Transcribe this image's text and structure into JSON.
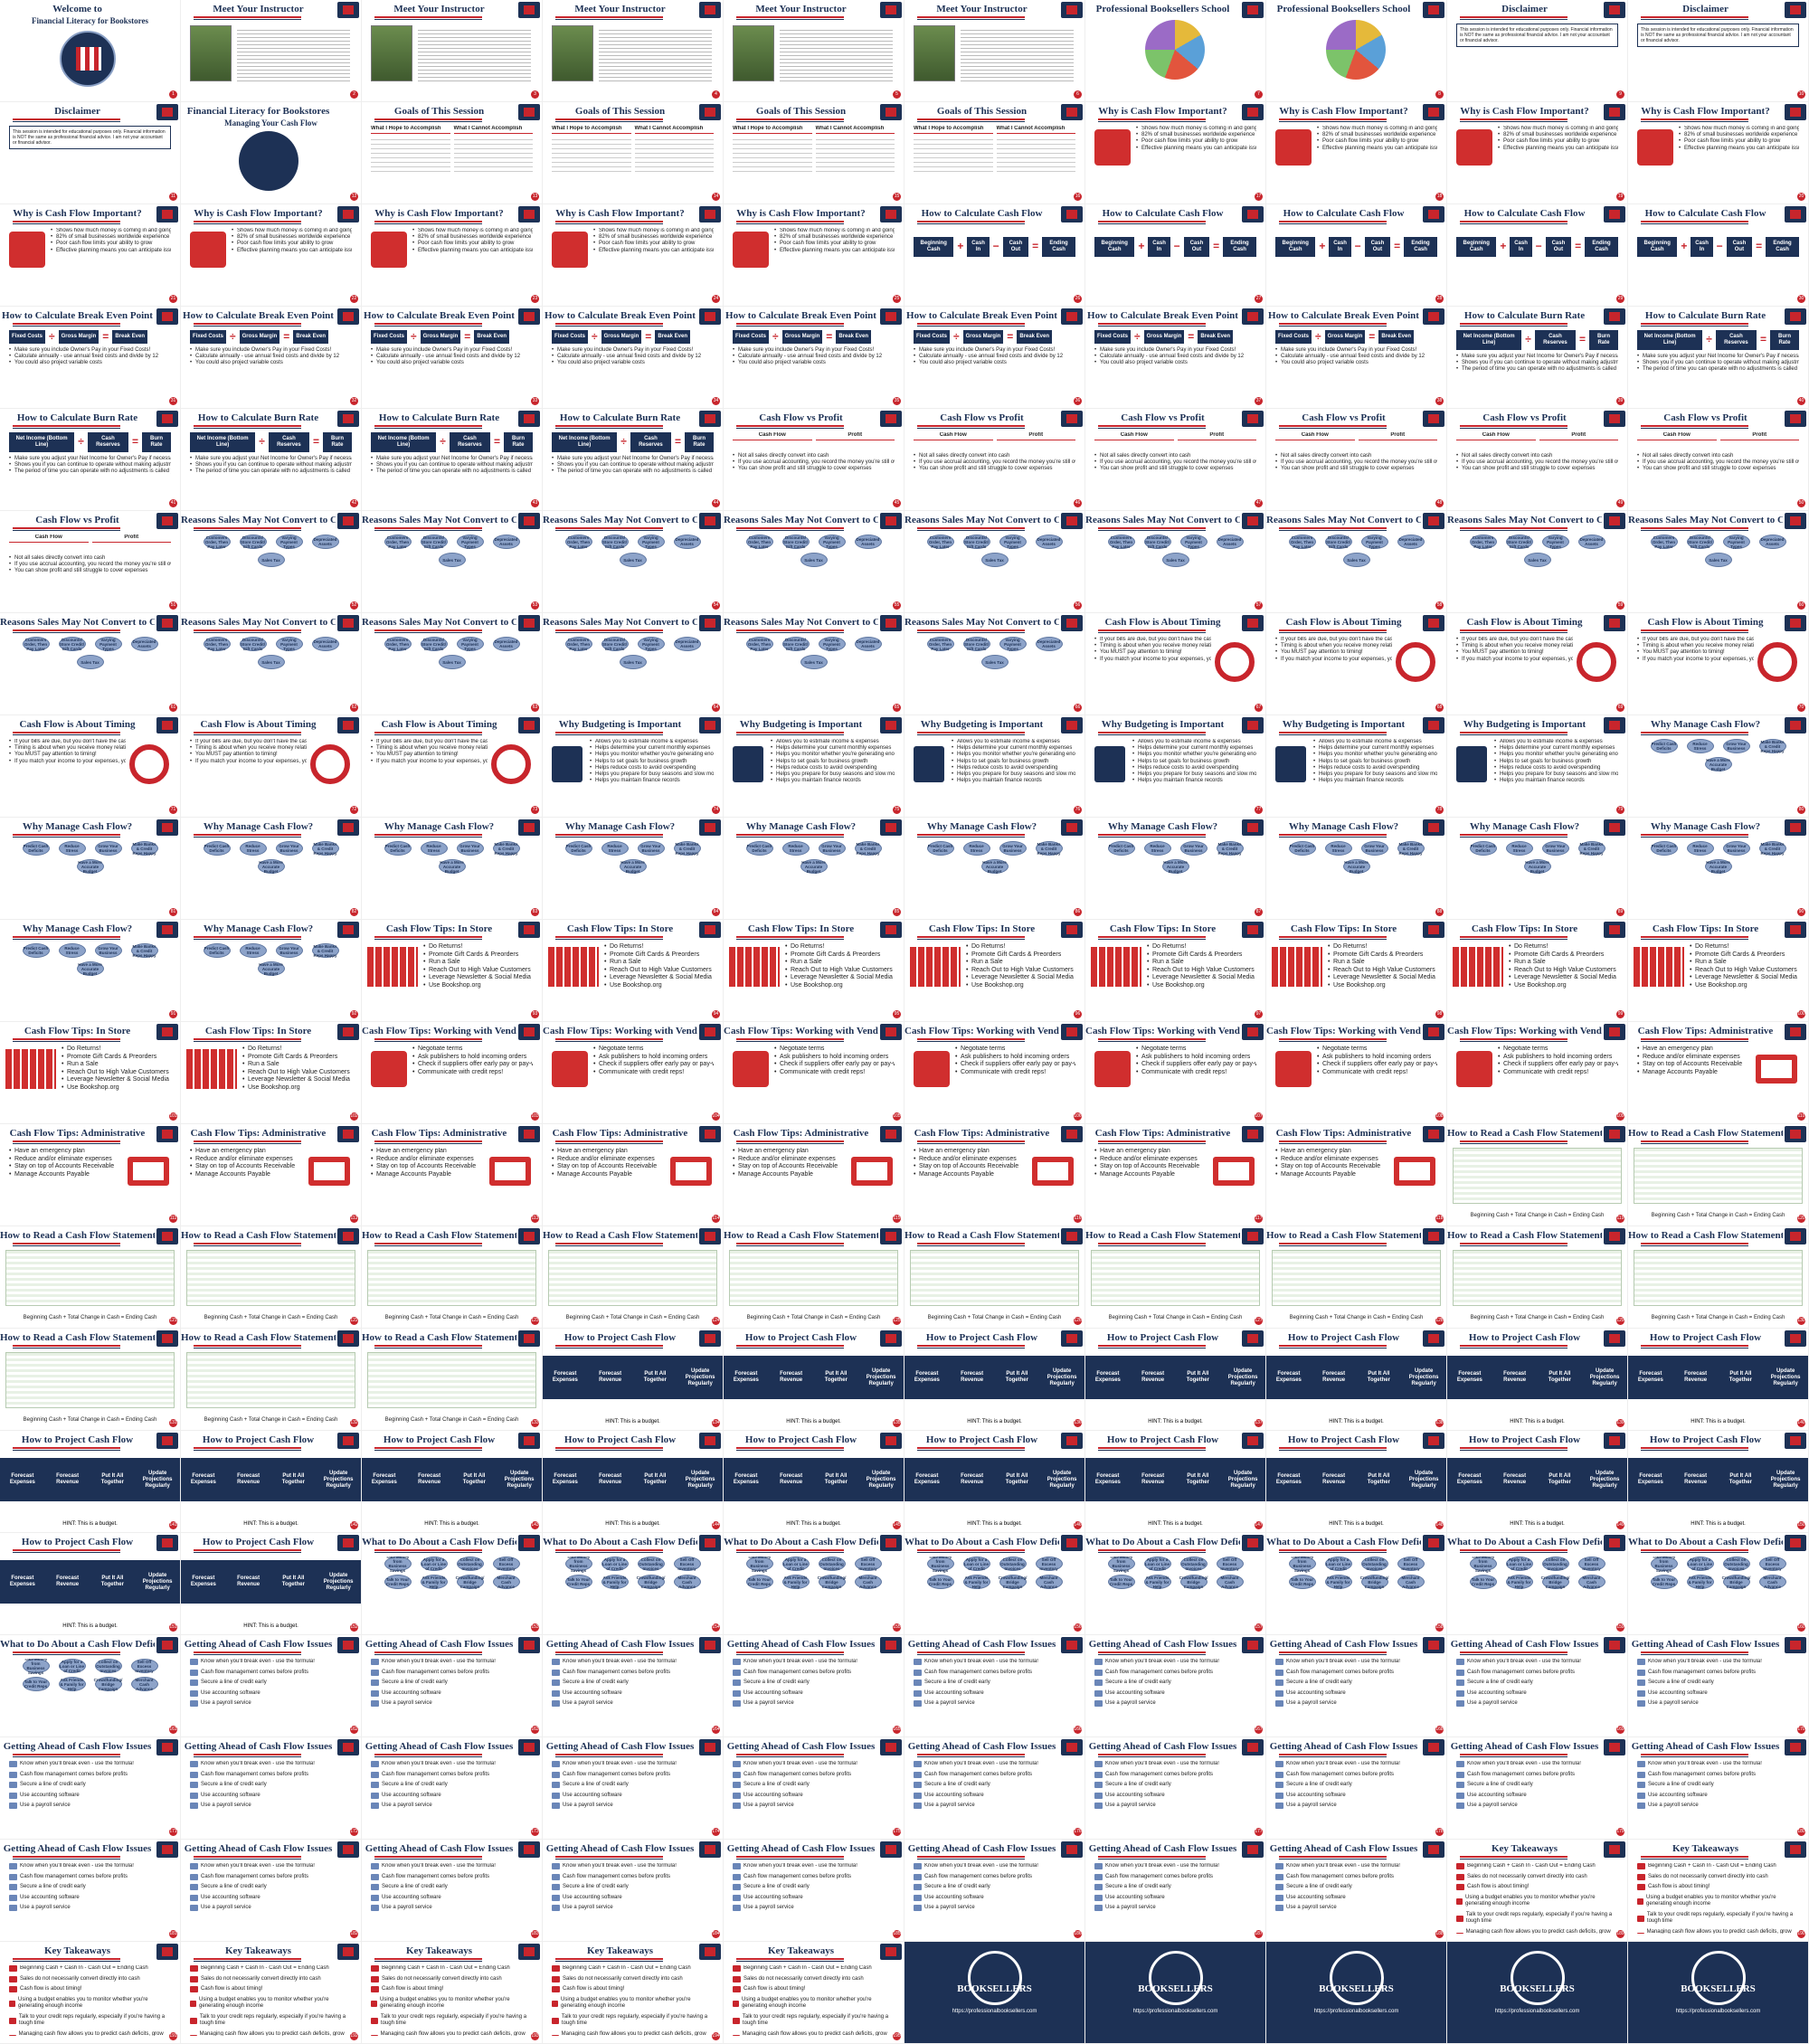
{
  "deck": {
    "brand": "Professional Booksellers School",
    "url": "https://professionalbooksellers.com"
  },
  "titles": {
    "welcome": "Welcome to",
    "welcome_sub": "Financial Literacy for Bookstores",
    "instructor": "Meet Your Instructor",
    "pbs": "Professional Booksellers School",
    "disclaimer": "Disclaimer",
    "fl_title": "Financial Literacy for Bookstores",
    "fl_sub": "Managing Your Cash Flow",
    "goals": "Goals of This Session",
    "why_cf": "Why is Cash Flow Important?",
    "calc_cf": "How to Calculate Cash Flow",
    "calc_be": "How to Calculate Break Even Point",
    "calc_burn": "How to Calculate Burn Rate",
    "cf_vs_profit": "Cash Flow vs Profit",
    "reasons": "Reasons Sales May Not Convert to Cash",
    "timing": "Cash Flow is About Timing",
    "budgeting": "Why Budgeting is Important",
    "why_manage": "Why Manage Cash Flow?",
    "tips_store": "Cash Flow Tips: In Store",
    "tips_vendors": "Cash Flow Tips: Working with Vendors",
    "tips_admin": "Cash Flow Tips: Administrative",
    "read_stmt": "How to Read a Cash Flow Statement",
    "project": "How to Project Cash Flow",
    "do_about": "What to Do About a Cash Flow Deficit",
    "ahead": "Getting Ahead of Cash Flow Issues",
    "takeaways": "Key Takeaways",
    "booksellers": "BOOKSELLERS"
  },
  "goals": {
    "left_head": "What I Hope to Accomplish",
    "right_head": "What I Cannot Accomplish"
  },
  "disclaimer_text": "This session is intended for educational purposes only. Financial information is NOT the same as professional financial advice. I am not your accountant or financial advisor.",
  "why_cf_bullets": [
    "Shows how much money is coming in and going out",
    "82% of small businesses worldwide experience cash flow problems",
    "Poor cash flow limits your ability to grow",
    "Effective planning means you can anticipate issues"
  ],
  "calc_cf_boxes": [
    "Beginning Cash",
    "Cash In",
    "Cash Out",
    "Ending Cash"
  ],
  "calc_be_boxes": [
    "Fixed Costs",
    "Gross Margin",
    "Break Even"
  ],
  "calc_burn_boxes": [
    "Net Income (Bottom Line)",
    "Cash Reserves",
    "Burn Rate"
  ],
  "calc_be_bullets": [
    "Make sure you include Owner's Pay in your Fixed Costs!",
    "Calculate annually - use annual fixed costs and divide by 12",
    "You could also project variable costs"
  ],
  "calc_burn_bullets": [
    "Make sure you adjust your Net Income for Owner's Pay if necessary",
    "Shows you if you can continue to operate without making adjustments",
    "The period of time you can operate with no adjustments is called your runway"
  ],
  "cf_vs_profit": {
    "left_head": "Cash Flow",
    "right_head": "Profit",
    "bullets": [
      "Not all sales directly convert into cash",
      "If you use accrual accounting, you record the money you're still owed as revenue",
      "You can show profit and still struggle to cover expenses"
    ]
  },
  "reasons_ovals": [
    "Customers Order, Then Pay Later",
    "Discounts/ Store Credit/ Gift Cards",
    "Varying Payment Types",
    "Depreciated Assets",
    "Sales Tax"
  ],
  "timing_bullets": [
    "If your bills are due, but you don't have the cash on hand to pay them, you have a cash flow issue",
    "Timing is about when you receive money relative to when you need to spend it",
    "You MUST pay attention to timing!",
    "If you match your income to your expenses, you'll save money and stress"
  ],
  "budgeting_bullets": [
    "Allows you to estimate income & expenses",
    "Helps determine your current monthly expenses",
    "Helps you monitor whether you're generating enough income",
    "Helps to set goals for business growth",
    "Helps reduce costs to avoid overspending",
    "Helps you prepare for busy seasons and slow months",
    "Helps you maintain finance records"
  ],
  "manage_ovals": [
    "Predict Cash Deficits",
    "Reduce Stress",
    "Grow Your Business",
    "Make Banks & Credit Reps Happy",
    "Have a More Accurate Budget"
  ],
  "store_bullets": [
    "Do Returns!",
    "Promote Gift Cards & Preorders",
    "Run a Sale",
    "Reach Out to High Value Customers",
    "Leverage Newsletter & Social Media",
    "Use Bookshop.org"
  ],
  "vendor_bullets": [
    "Negotiate terms",
    "Ask publishers to hold incoming orders",
    "Check if suppliers offer early pay or pay-with-credit card discounts",
    "Communicate with credit reps!"
  ],
  "admin_bullets": [
    "Have an emergency plan",
    "Reduce and/or eliminate expenses",
    "Stay on top of Accounts Receivable",
    "Manage Accounts Payable"
  ],
  "stmt_formula": "Beginning Cash + Total Change in Cash = Ending Cash",
  "project_boxes": [
    "Forecast Expenses",
    "Forecast Revenue",
    "Put It All Together",
    "Update Projections Regularly"
  ],
  "project_hint": "HINT: This is a budget.",
  "deficit_ovals": [
    "Take Money from Business Savings",
    "Apply for a Loan or Line of Credit",
    "Collect on Outstanding Invoices",
    "Sell Off Excess Inventory",
    "Talk to Your Credit Reps",
    "Ask Friends & Family for Help",
    "Crowdfunding/ Bridge Campaign",
    "Merchant Cash Advance"
  ],
  "ahead_items": [
    "Know when you'll break even - use the formula!",
    "Cash flow management comes before profits",
    "Secure a line of credit early",
    "Use accounting software",
    "Use a payroll service"
  ],
  "takeaways": [
    "Beginning Cash + Cash In - Cash Out = Ending Cash",
    "Sales do not necessarily convert directly into cash",
    "Cash flow is about timing!",
    "Using a budget enables you to monitor whether you're generating enough income",
    "Talk to your credit reps regularly, especially if you're having a tough time",
    "Managing cash flow allows you to predict cash deficits, grow your business"
  ],
  "slides": [
    "welcome",
    "instructor",
    "instructor",
    "instructor",
    "instructor",
    "instructor",
    "pbs",
    "pbs",
    "disclaimer",
    "disclaimer",
    "disclaimer",
    "fl",
    "goals",
    "goals",
    "goals",
    "goals",
    "why_cf",
    "why_cf",
    "why_cf",
    "why_cf",
    "why_cf",
    "why_cf",
    "why_cf",
    "why_cf",
    "why_cf",
    "calc_cf",
    "calc_cf",
    "calc_cf",
    "calc_cf",
    "calc_cf",
    "calc_be",
    "calc_be",
    "calc_be",
    "calc_be",
    "calc_be",
    "calc_be",
    "calc_be",
    "calc_be",
    "calc_burn",
    "calc_burn",
    "calc_burn",
    "calc_burn",
    "calc_burn",
    "calc_burn",
    "cf_vs_profit",
    "cf_vs_profit",
    "cf_vs_profit",
    "cf_vs_profit",
    "cf_vs_profit",
    "cf_vs_profit",
    "cf_vs_profit",
    "reasons",
    "reasons",
    "reasons",
    "reasons",
    "reasons",
    "reasons",
    "reasons",
    "reasons",
    "reasons",
    "reasons",
    "reasons",
    "reasons",
    "reasons",
    "reasons",
    "reasons",
    "timing",
    "timing",
    "timing",
    "timing",
    "timing",
    "timing",
    "timing",
    "budgeting",
    "budgeting",
    "budgeting",
    "budgeting",
    "budgeting",
    "budgeting",
    "why_manage",
    "why_manage",
    "why_manage",
    "why_manage",
    "why_manage",
    "why_manage",
    "why_manage",
    "why_manage",
    "why_manage",
    "why_manage",
    "why_manage",
    "why_manage",
    "why_manage",
    "tips_store",
    "tips_store",
    "tips_store",
    "tips_store",
    "tips_store",
    "tips_store",
    "tips_store",
    "tips_store",
    "tips_store",
    "tips_store",
    "tips_vendors",
    "tips_vendors",
    "tips_vendors",
    "tips_vendors",
    "tips_vendors",
    "tips_vendors",
    "tips_vendors",
    "tips_admin",
    "tips_admin",
    "tips_admin",
    "tips_admin",
    "tips_admin",
    "tips_admin",
    "tips_admin",
    "tips_admin",
    "tips_admin",
    "read_stmt",
    "read_stmt",
    "read_stmt",
    "read_stmt",
    "read_stmt",
    "read_stmt",
    "read_stmt",
    "read_stmt",
    "read_stmt",
    "read_stmt",
    "read_stmt",
    "read_stmt",
    "read_stmt",
    "read_stmt",
    "read_stmt",
    "project",
    "project",
    "project",
    "project",
    "project",
    "project",
    "project",
    "project",
    "project",
    "project",
    "project",
    "project",
    "project",
    "project",
    "project",
    "project",
    "project",
    "project",
    "project",
    "do_about",
    "do_about",
    "do_about",
    "do_about",
    "do_about",
    "do_about",
    "do_about",
    "do_about",
    "do_about",
    "ahead",
    "ahead",
    "ahead",
    "ahead",
    "ahead",
    "ahead",
    "ahead",
    "ahead",
    "ahead",
    "ahead",
    "ahead",
    "ahead",
    "ahead",
    "ahead",
    "ahead",
    "ahead",
    "ahead",
    "ahead",
    "ahead",
    "ahead",
    "ahead",
    "ahead",
    "ahead",
    "ahead",
    "ahead",
    "ahead",
    "ahead",
    "takeaways",
    "takeaways",
    "takeaways",
    "takeaways",
    "takeaways",
    "takeaways",
    "takeaways",
    "final",
    "final",
    "final",
    "final",
    "final"
  ]
}
